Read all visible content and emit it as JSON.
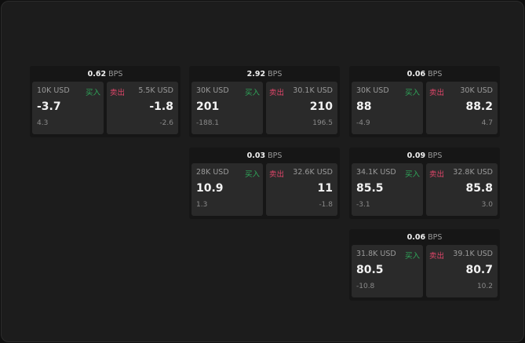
{
  "labels": {
    "buy": "买入",
    "sell": "卖出",
    "unit": "BPS"
  },
  "colors": {
    "buy": "#2fa85a",
    "sell": "#e0466a"
  },
  "cards": [
    {
      "spread": "0.62",
      "bid": {
        "qty": "10K USD",
        "price": "-3.7",
        "change": "4.3"
      },
      "ask": {
        "qty": "5.5K USD",
        "price": "-1.8",
        "change": "-2.6"
      }
    },
    {
      "spread": "2.92",
      "bid": {
        "qty": "30K USD",
        "price": "201",
        "change": "-188.1"
      },
      "ask": {
        "qty": "30.1K USD",
        "price": "210",
        "change": "196.5"
      }
    },
    {
      "spread": "0.06",
      "bid": {
        "qty": "30K USD",
        "price": "88",
        "change": "-4.9"
      },
      "ask": {
        "qty": "30K USD",
        "price": "88.2",
        "change": "4.7"
      }
    },
    {
      "spread": "0.03",
      "bid": {
        "qty": "28K USD",
        "price": "10.9",
        "change": "1.3"
      },
      "ask": {
        "qty": "32.6K USD",
        "price": "11",
        "change": "-1.8"
      }
    },
    {
      "spread": "0.09",
      "bid": {
        "qty": "34.1K USD",
        "price": "85.5",
        "change": "-3.1"
      },
      "ask": {
        "qty": "32.8K USD",
        "price": "85.8",
        "change": "3.0"
      }
    },
    {
      "spread": "0.06",
      "bid": {
        "qty": "31.8K USD",
        "price": "80.5",
        "change": "-10.8"
      },
      "ask": {
        "qty": "39.1K USD",
        "price": "80.7",
        "change": "10.2"
      }
    }
  ]
}
